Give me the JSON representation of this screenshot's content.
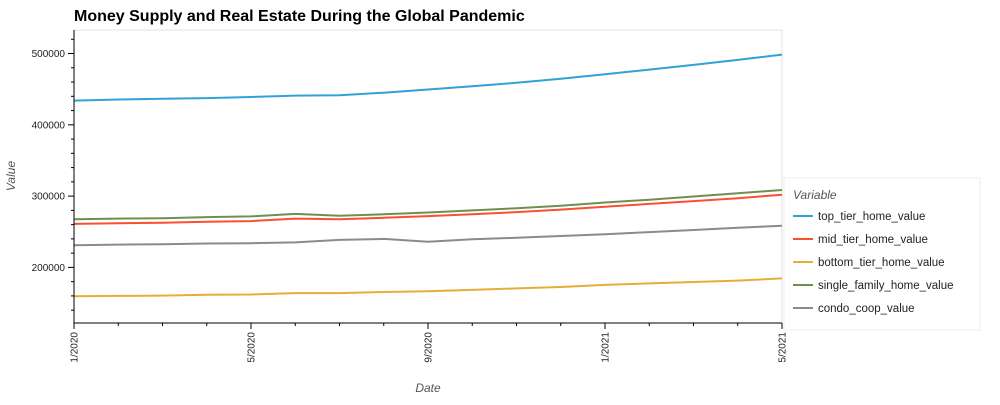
{
  "chart_data": {
    "type": "line",
    "title": "Money Supply and Real Estate During the Global Pandemic",
    "xlabel": "Date",
    "ylabel": "Value",
    "x": [
      "2020-01",
      "2020-02",
      "2020-03",
      "2020-04",
      "2020-05",
      "2020-06",
      "2020-07",
      "2020-08",
      "2020-09",
      "2020-10",
      "2020-11",
      "2020-12",
      "2021-01",
      "2021-02",
      "2021-03",
      "2021-04",
      "2021-05"
    ],
    "xlim": [
      "2020-01",
      "2021-05"
    ],
    "x_ticks": [
      "1/2020",
      "5/2020",
      "9/2020",
      "1/2021",
      "5/2021"
    ],
    "ylim": [
      122000,
      533000
    ],
    "y_ticks": [
      200000,
      300000,
      400000,
      500000
    ],
    "y_tick_labels": [
      "200000",
      "300000",
      "400000",
      "500000"
    ],
    "grid": false,
    "legend": {
      "title": "Variable",
      "placement": "right"
    },
    "series": [
      {
        "name": "top_tier_home_value",
        "color": "#30a2da",
        "values": [
          434000,
          435500,
          436500,
          437500,
          439000,
          441000,
          441500,
          445000,
          449500,
          454000,
          459000,
          464500,
          471000,
          477500,
          484000,
          491000,
          498500
        ]
      },
      {
        "name": "mid_tier_home_value",
        "color": "#fc4f30",
        "values": [
          261000,
          262000,
          262500,
          264000,
          265000,
          268500,
          267500,
          269500,
          272000,
          274500,
          277500,
          281000,
          285000,
          289000,
          293000,
          297000,
          302000
        ]
      },
      {
        "name": "bottom_tier_home_value",
        "color": "#e5ae38",
        "values": [
          159500,
          160000,
          160500,
          161500,
          162000,
          164000,
          164000,
          165500,
          166500,
          168500,
          170500,
          172500,
          175500,
          177500,
          179500,
          181500,
          184500
        ]
      },
      {
        "name": "single_family_home_value",
        "color": "#6d904f",
        "values": [
          267500,
          268500,
          269000,
          270500,
          271500,
          275000,
          272500,
          274500,
          277000,
          280000,
          283000,
          286500,
          291000,
          295000,
          299500,
          304000,
          308500
        ]
      },
      {
        "name": "condo_coop_value",
        "color": "#8b8b8b",
        "values": [
          231000,
          232000,
          232500,
          233500,
          234000,
          235000,
          238500,
          240000,
          236000,
          239500,
          241500,
          244000,
          246500,
          249500,
          252500,
          255500,
          258500
        ]
      }
    ]
  }
}
